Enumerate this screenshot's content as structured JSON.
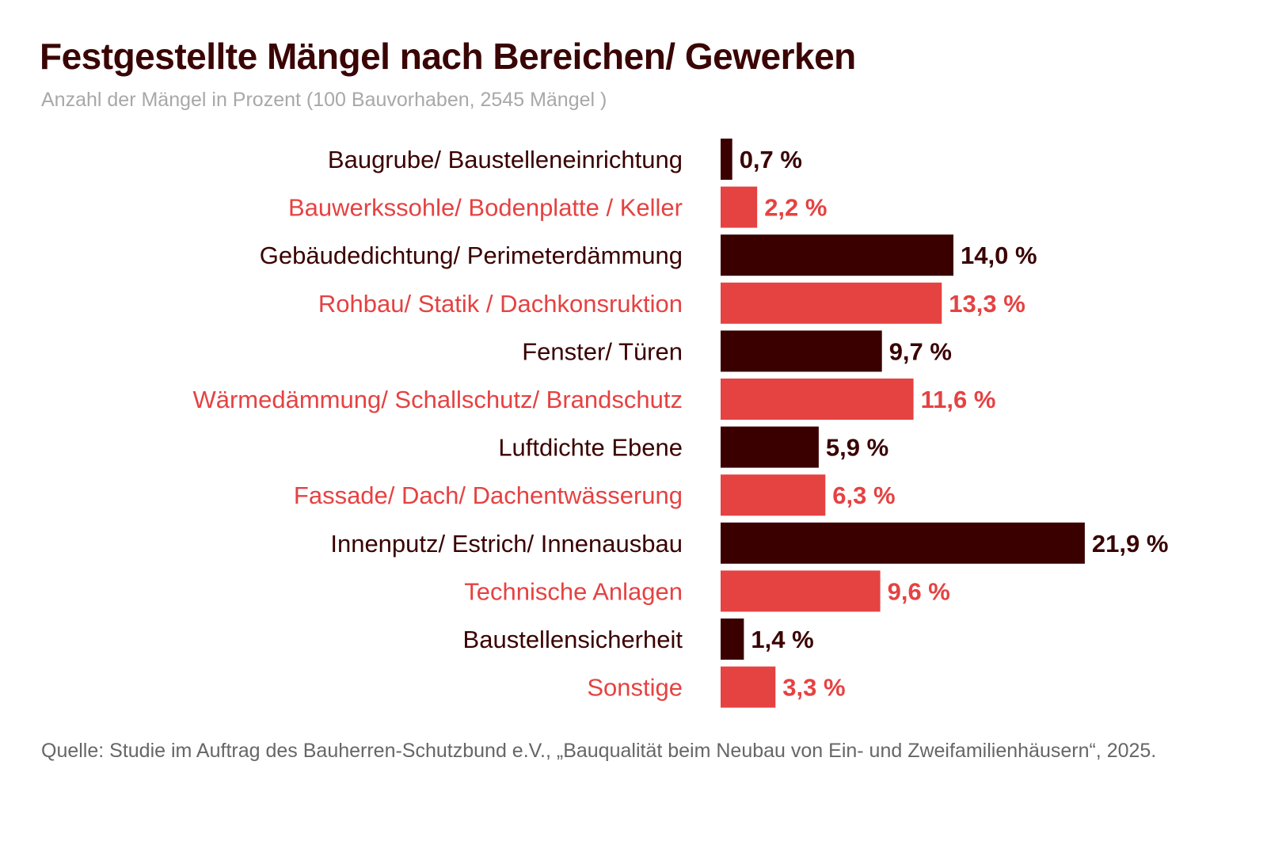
{
  "title": "Festgestellte Mängel nach Bereichen/ Gewerken",
  "subtitle": "Anzahl der Mängel in Prozent (100 Bauvorhaben, 2545 Mängel )",
  "source": "Quelle: Studie im Auftrag des Bauherren-Schutzbund e.V., „Bauqualität beim Neubau von Ein- und Zweifamilienhäusern“, 2025.",
  "colors": {
    "dark": "#3a0000",
    "red": "#e54242"
  },
  "chart_data": {
    "type": "bar",
    "orientation": "horizontal",
    "title": "Festgestellte Mängel nach Bereichen/ Gewerken",
    "subtitle": "Anzahl der Mängel in Prozent (100 Bauvorhaben, 2545 Mängel )",
    "xlabel": "",
    "ylabel": "",
    "unit": "%",
    "grid": false,
    "legend": "none",
    "xlim": [
      0,
      21.9
    ],
    "categories": [
      "Baugrube/ Baustelleneinrichtung",
      "Bauwerkssohle/ Bodenplatte / Keller",
      "Gebäudedichtung/ Perimeterdämmung",
      "Rohbau/ Statik / Dachkonsruktion",
      "Fenster/ Türen",
      "Wärmedämmung/ Schallschutz/ Brandschutz",
      "Luftdichte Ebene",
      "Fassade/ Dach/ Dachentwässerung",
      "Innenputz/ Estrich/ Innenausbau",
      "Technische Anlagen",
      "Baustellensicherheit",
      "Sonstige"
    ],
    "values": [
      0.7,
      2.2,
      14.0,
      13.3,
      9.7,
      11.6,
      5.9,
      6.3,
      21.9,
      9.6,
      1.4,
      3.3
    ],
    "labels": [
      "0,7 %",
      "2,2 %",
      "14,0 %",
      "13,3 %",
      "9,7 %",
      "11,6 %",
      "5,9 %",
      "6,3 %",
      "21,9 %",
      "9,6 %",
      "1,4 %",
      "3,3 %"
    ],
    "bar_colors": [
      "dark",
      "red",
      "dark",
      "red",
      "dark",
      "red",
      "dark",
      "red",
      "dark",
      "red",
      "dark",
      "red"
    ]
  }
}
